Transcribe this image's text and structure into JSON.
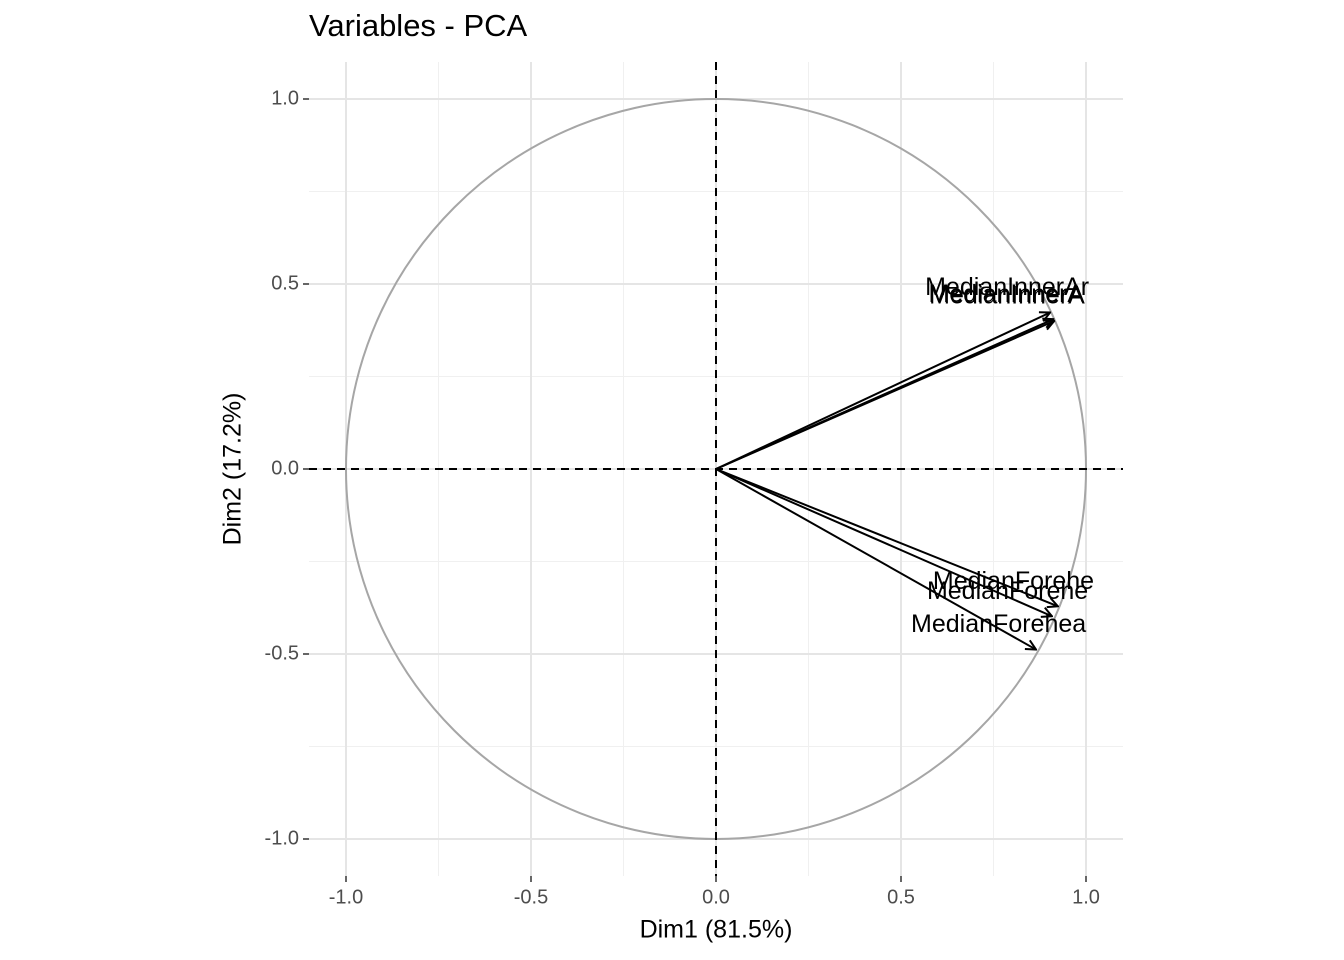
{
  "chart_data": {
    "type": "pca-variables",
    "title": "Variables - PCA",
    "x_label": "Dim1 (81.5%)",
    "y_label": "Dim2 (17.2%)",
    "xlim": [
      -1.1,
      1.1
    ],
    "ylim": [
      -1.1,
      1.1
    ],
    "xticks": [
      {
        "value": -1,
        "label": "-1.0"
      },
      -0.5,
      {
        "value": 0,
        "label": "0.0"
      },
      0.5,
      {
        "value": 1,
        "label": "1.0"
      }
    ],
    "yticks": [
      {
        "value": -1,
        "label": "-1.0"
      },
      -0.5,
      {
        "value": 0,
        "label": "0.0"
      },
      0.5,
      {
        "value": 1,
        "label": "1.0"
      }
    ],
    "xminorticks": [
      -0.75,
      -0.25,
      0.25,
      0.75
    ],
    "yminorticks": [
      -0.75,
      -0.25,
      0.25,
      0.75
    ],
    "grid": true,
    "color": "#000000",
    "circle_color": "#a6a6a6",
    "variables": [
      {
        "name": "MedianInnerAr",
        "x": 0.903,
        "y": 0.423
      },
      {
        "name": "MedianInnerA",
        "x": 0.912,
        "y": 0.405
      },
      {
        "name": "MedianInnerA",
        "x": 0.914,
        "y": 0.4
      },
      {
        "name": "MedianForehe",
        "x": 0.924,
        "y": -0.371
      },
      {
        "name": "MedianForehe",
        "x": 0.908,
        "y": -0.398
      },
      {
        "name": "MedianForehea",
        "x": 0.865,
        "y": -0.488
      }
    ]
  }
}
